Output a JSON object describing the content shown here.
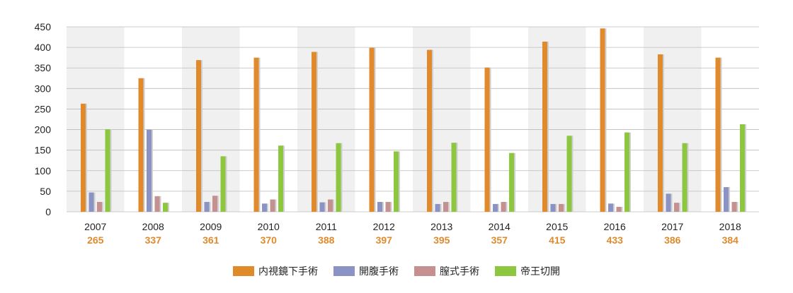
{
  "chart_data": {
    "type": "bar",
    "categories": [
      "2007",
      "2008",
      "2009",
      "2010",
      "2011",
      "2012",
      "2013",
      "2014",
      "2015",
      "2016",
      "2017",
      "2018"
    ],
    "totals": [
      "265",
      "337",
      "361",
      "370",
      "388",
      "397",
      "395",
      "357",
      "415",
      "433",
      "386",
      "384"
    ],
    "series": [
      {
        "name": "内視鏡下手術",
        "color": "#e08a2c",
        "values": [
          263,
          325,
          369,
          375,
          389,
          399,
          394,
          351,
          414,
          446,
          383,
          375
        ]
      },
      {
        "name": "開腹手術",
        "color": "#8a93c4",
        "values": [
          47,
          200,
          24,
          20,
          23,
          24,
          19,
          19,
          19,
          20,
          44,
          60
        ]
      },
      {
        "name": "膣式手術",
        "color": "#c49090",
        "values": [
          24,
          38,
          39,
          30,
          30,
          24,
          24,
          24,
          19,
          12,
          22,
          24
        ]
      },
      {
        "name": "帝王切開",
        "color": "#8dc63f",
        "values": [
          201,
          22,
          135,
          161,
          167,
          147,
          168,
          143,
          185,
          193,
          167,
          213
        ]
      }
    ],
    "yticks": [
      0,
      50,
      100,
      150,
      200,
      250,
      300,
      350,
      400,
      450
    ],
    "ylim": [
      0,
      450
    ],
    "grid": true,
    "legend_position": "bottom-center",
    "total_color": "#e08a2c",
    "band_color": "#f0f0f0",
    "grid_color": "#bbbbbb"
  }
}
